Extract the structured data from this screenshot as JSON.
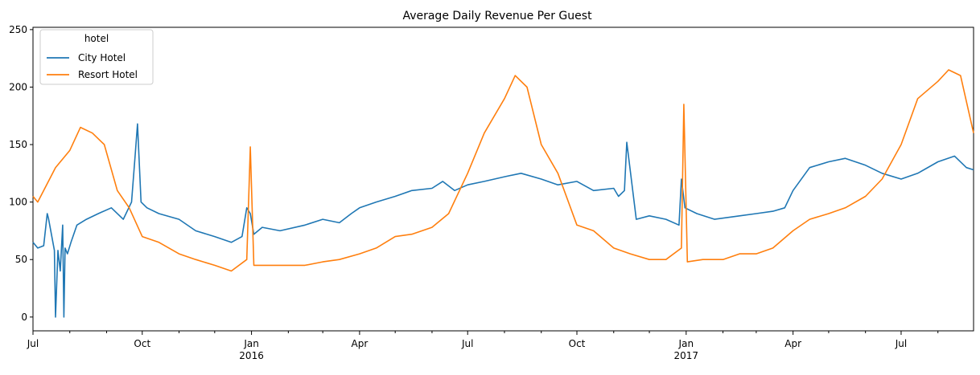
{
  "chart_data": {
    "type": "line",
    "title": "Average Daily Revenue Per Guest",
    "xlabel": "",
    "ylabel": "",
    "x_range": [
      "2015-07-01",
      "2017-08-31"
    ],
    "ylim": [
      -12,
      252
    ],
    "grid": false,
    "legend": {
      "title": "hotel",
      "placement": "top-left"
    },
    "y_ticks": [
      0,
      50,
      100,
      150,
      200,
      250
    ],
    "x_major_ticks": [
      {
        "date": "2015-07-01",
        "label": "Jul",
        "sublabel": ""
      },
      {
        "date": "2015-10-01",
        "label": "Oct",
        "sublabel": ""
      },
      {
        "date": "2016-01-01",
        "label": "Jan",
        "sublabel": "2016"
      },
      {
        "date": "2016-04-01",
        "label": "Apr",
        "sublabel": ""
      },
      {
        "date": "2016-07-01",
        "label": "Jul",
        "sublabel": ""
      },
      {
        "date": "2016-10-01",
        "label": "Oct",
        "sublabel": ""
      },
      {
        "date": "2017-01-01",
        "label": "Jan",
        "sublabel": "2017"
      },
      {
        "date": "2017-04-01",
        "label": "Apr",
        "sublabel": ""
      },
      {
        "date": "2017-07-01",
        "label": "Jul",
        "sublabel": ""
      }
    ],
    "series": [
      {
        "name": "City Hotel",
        "color": "#1f77b4",
        "x": [
          "2015-07-01",
          "2015-07-05",
          "2015-07-10",
          "2015-07-13",
          "2015-07-14",
          "2015-07-19",
          "2015-07-20",
          "2015-07-22",
          "2015-07-24",
          "2015-07-26",
          "2015-07-27",
          "2015-07-28",
          "2015-07-30",
          "2015-08-02",
          "2015-08-07",
          "2015-08-15",
          "2015-08-25",
          "2015-09-05",
          "2015-09-15",
          "2015-09-22",
          "2015-09-25",
          "2015-09-27",
          "2015-09-30",
          "2015-10-05",
          "2015-10-15",
          "2015-11-01",
          "2015-11-15",
          "2015-12-01",
          "2015-12-15",
          "2015-12-24",
          "2015-12-28",
          "2015-12-31",
          "2016-01-03",
          "2016-01-10",
          "2016-01-25",
          "2016-02-15",
          "2016-03-01",
          "2016-03-15",
          "2016-03-25",
          "2016-04-01",
          "2016-04-15",
          "2016-05-01",
          "2016-05-15",
          "2016-06-01",
          "2016-06-10",
          "2016-06-20",
          "2016-07-01",
          "2016-07-15",
          "2016-08-01",
          "2016-08-15",
          "2016-09-01",
          "2016-09-15",
          "2016-10-01",
          "2016-10-15",
          "2016-11-01",
          "2016-11-05",
          "2016-11-10",
          "2016-11-12",
          "2016-11-20",
          "2016-12-01",
          "2016-12-15",
          "2016-12-26",
          "2016-12-28",
          "2016-12-31",
          "2017-01-10",
          "2017-01-25",
          "2017-02-15",
          "2017-03-01",
          "2017-03-15",
          "2017-03-25",
          "2017-04-01",
          "2017-04-15",
          "2017-05-01",
          "2017-05-15",
          "2017-06-01",
          "2017-06-15",
          "2017-07-01",
          "2017-07-15",
          "2017-08-01",
          "2017-08-15",
          "2017-08-25",
          "2017-08-31"
        ],
        "values": [
          65,
          60,
          62,
          90,
          86,
          58,
          0,
          58,
          40,
          80,
          0,
          60,
          55,
          65,
          80,
          85,
          90,
          95,
          85,
          100,
          140,
          168,
          100,
          95,
          90,
          85,
          75,
          70,
          65,
          70,
          95,
          90,
          72,
          78,
          75,
          80,
          85,
          82,
          90,
          95,
          100,
          105,
          110,
          112,
          118,
          110,
          115,
          118,
          122,
          125,
          120,
          115,
          118,
          110,
          112,
          105,
          110,
          152,
          85,
          88,
          85,
          80,
          120,
          95,
          90,
          85,
          88,
          90,
          92,
          95,
          110,
          130,
          135,
          138,
          132,
          125,
          120,
          125,
          135,
          140,
          130,
          128
        ]
      },
      {
        "name": "Resort Hotel",
        "color": "#ff7f0e",
        "x": [
          "2015-07-01",
          "2015-07-05",
          "2015-07-10",
          "2015-07-20",
          "2015-08-01",
          "2015-08-10",
          "2015-08-20",
          "2015-08-30",
          "2015-09-10",
          "2015-09-20",
          "2015-10-01",
          "2015-10-15",
          "2015-11-01",
          "2015-11-15",
          "2015-12-01",
          "2015-12-15",
          "2015-12-28",
          "2015-12-31",
          "2016-01-03",
          "2016-01-15",
          "2016-02-01",
          "2016-02-15",
          "2016-03-01",
          "2016-03-15",
          "2016-04-01",
          "2016-04-15",
          "2016-05-01",
          "2016-05-15",
          "2016-06-01",
          "2016-06-15",
          "2016-07-01",
          "2016-07-15",
          "2016-08-01",
          "2016-08-10",
          "2016-08-20",
          "2016-09-01",
          "2016-09-15",
          "2016-10-01",
          "2016-10-15",
          "2016-11-01",
          "2016-11-15",
          "2016-12-01",
          "2016-12-15",
          "2016-12-28",
          "2016-12-30",
          "2017-01-02",
          "2017-01-15",
          "2017-02-01",
          "2017-02-15",
          "2017-03-01",
          "2017-03-15",
          "2017-04-01",
          "2017-04-15",
          "2017-05-01",
          "2017-05-15",
          "2017-06-01",
          "2017-06-15",
          "2017-07-01",
          "2017-07-15",
          "2017-08-01",
          "2017-08-10",
          "2017-08-20",
          "2017-08-31"
        ],
        "values": [
          105,
          100,
          110,
          130,
          145,
          165,
          160,
          150,
          110,
          95,
          70,
          65,
          55,
          50,
          45,
          40,
          50,
          148,
          45,
          45,
          45,
          45,
          48,
          50,
          55,
          60,
          70,
          72,
          78,
          90,
          125,
          160,
          190,
          210,
          200,
          150,
          125,
          80,
          75,
          60,
          55,
          50,
          50,
          60,
          185,
          48,
          50,
          50,
          55,
          55,
          60,
          75,
          85,
          90,
          95,
          105,
          120,
          150,
          190,
          205,
          215,
          210,
          160
        ]
      }
    ]
  }
}
